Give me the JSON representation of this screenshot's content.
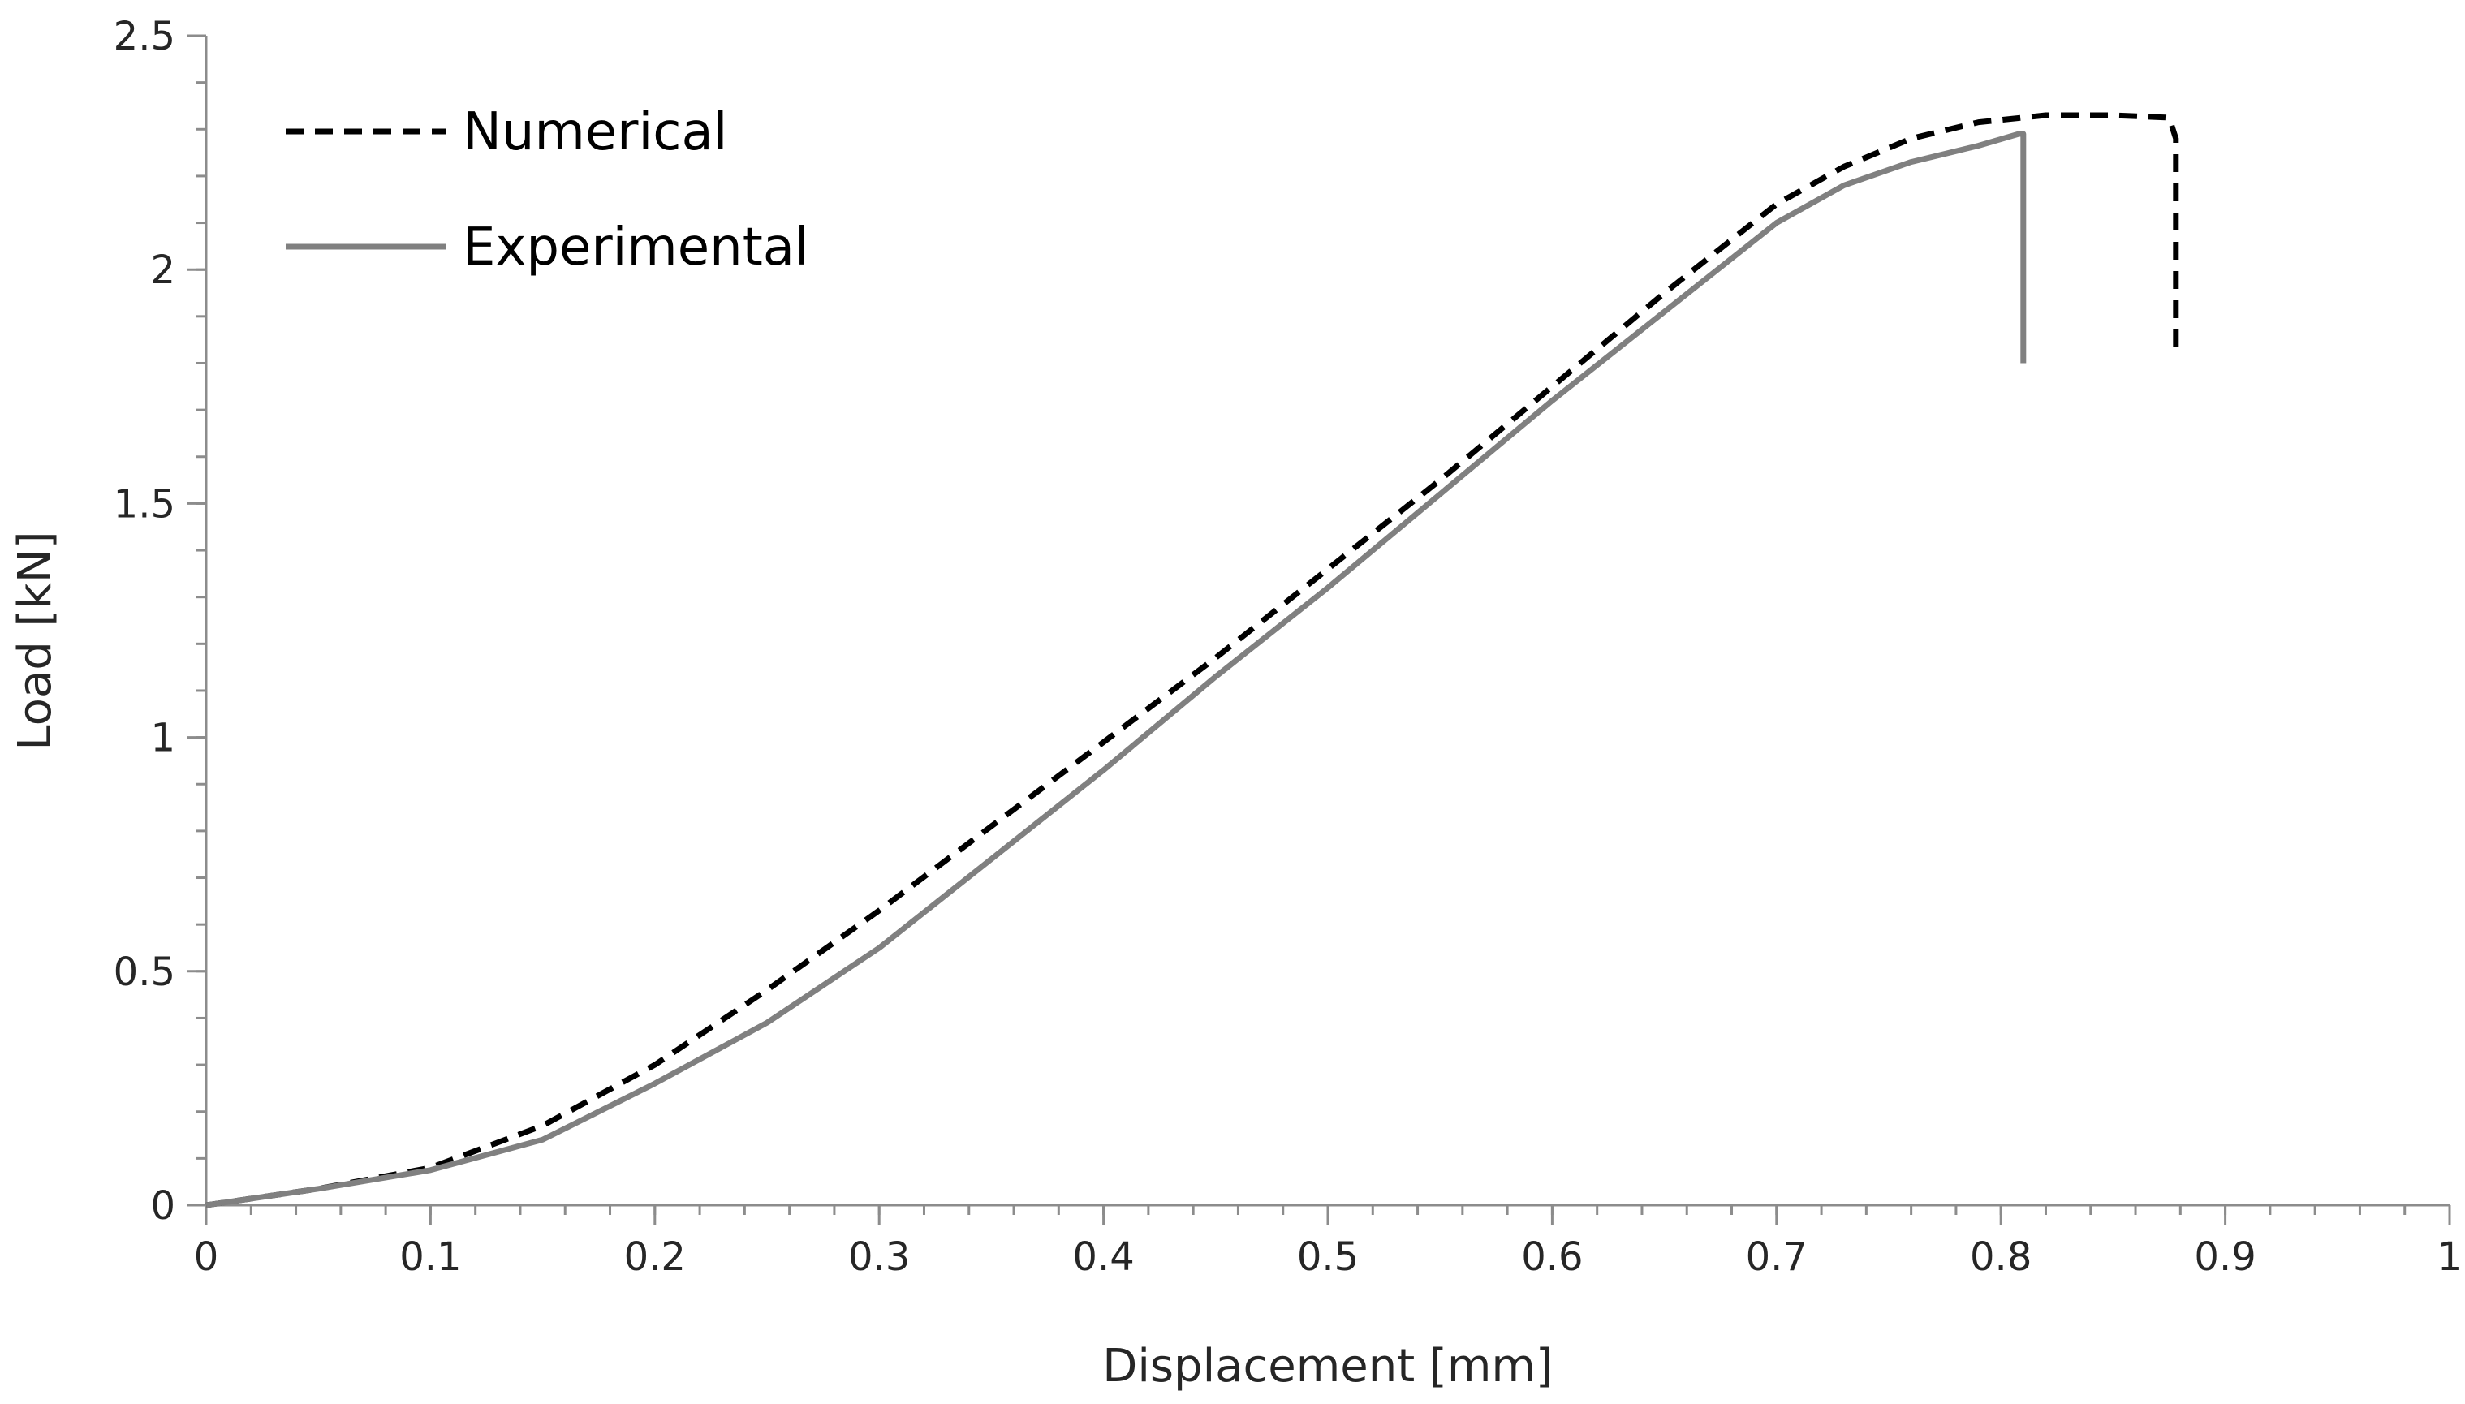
{
  "chart_data": {
    "type": "line",
    "title": "",
    "xlabel": "Displacement [mm]",
    "ylabel": "Load [kN]",
    "xlim": [
      0,
      1
    ],
    "ylim": [
      0,
      2.5
    ],
    "xticks": [
      0,
      0.1,
      0.2,
      0.3,
      0.4,
      0.5,
      0.6,
      0.7,
      0.8,
      0.9,
      1
    ],
    "xtick_labels": [
      "0",
      "0.1",
      "0.2",
      "0.3",
      "0.4",
      "0.5",
      "0.6",
      "0.7",
      "0.8",
      "0.9",
      "1"
    ],
    "yticks": [
      0,
      0.5,
      1,
      1.5,
      2,
      2.5
    ],
    "ytick_labels": [
      "0",
      "0.5",
      "1",
      "1.5",
      "2",
      "2.5"
    ],
    "x_minor_step": 0.02,
    "y_minor_step": 0.1,
    "grid": false,
    "legend_position": "top-left",
    "series": [
      {
        "name": "Numerical",
        "style": "dashed",
        "color": "#000000",
        "x": [
          0,
          0.05,
          0.1,
          0.15,
          0.2,
          0.25,
          0.3,
          0.35,
          0.4,
          0.45,
          0.5,
          0.55,
          0.6,
          0.65,
          0.7,
          0.73,
          0.76,
          0.79,
          0.82,
          0.85,
          0.875,
          0.878,
          0.878
        ],
        "y": [
          0,
          0.035,
          0.08,
          0.17,
          0.3,
          0.46,
          0.63,
          0.81,
          0.99,
          1.17,
          1.36,
          1.55,
          1.75,
          1.95,
          2.14,
          2.22,
          2.28,
          2.315,
          2.33,
          2.33,
          2.325,
          2.28,
          1.83
        ]
      },
      {
        "name": "Experimental",
        "style": "solid",
        "color": "#808080",
        "x": [
          0,
          0.05,
          0.1,
          0.15,
          0.2,
          0.25,
          0.3,
          0.35,
          0.4,
          0.45,
          0.5,
          0.55,
          0.6,
          0.65,
          0.7,
          0.73,
          0.76,
          0.79,
          0.808,
          0.81,
          0.81
        ],
        "y": [
          0,
          0.035,
          0.075,
          0.14,
          0.26,
          0.39,
          0.55,
          0.74,
          0.93,
          1.13,
          1.32,
          1.52,
          1.72,
          1.91,
          2.1,
          2.18,
          2.23,
          2.265,
          2.29,
          2.29,
          1.8
        ]
      }
    ]
  }
}
